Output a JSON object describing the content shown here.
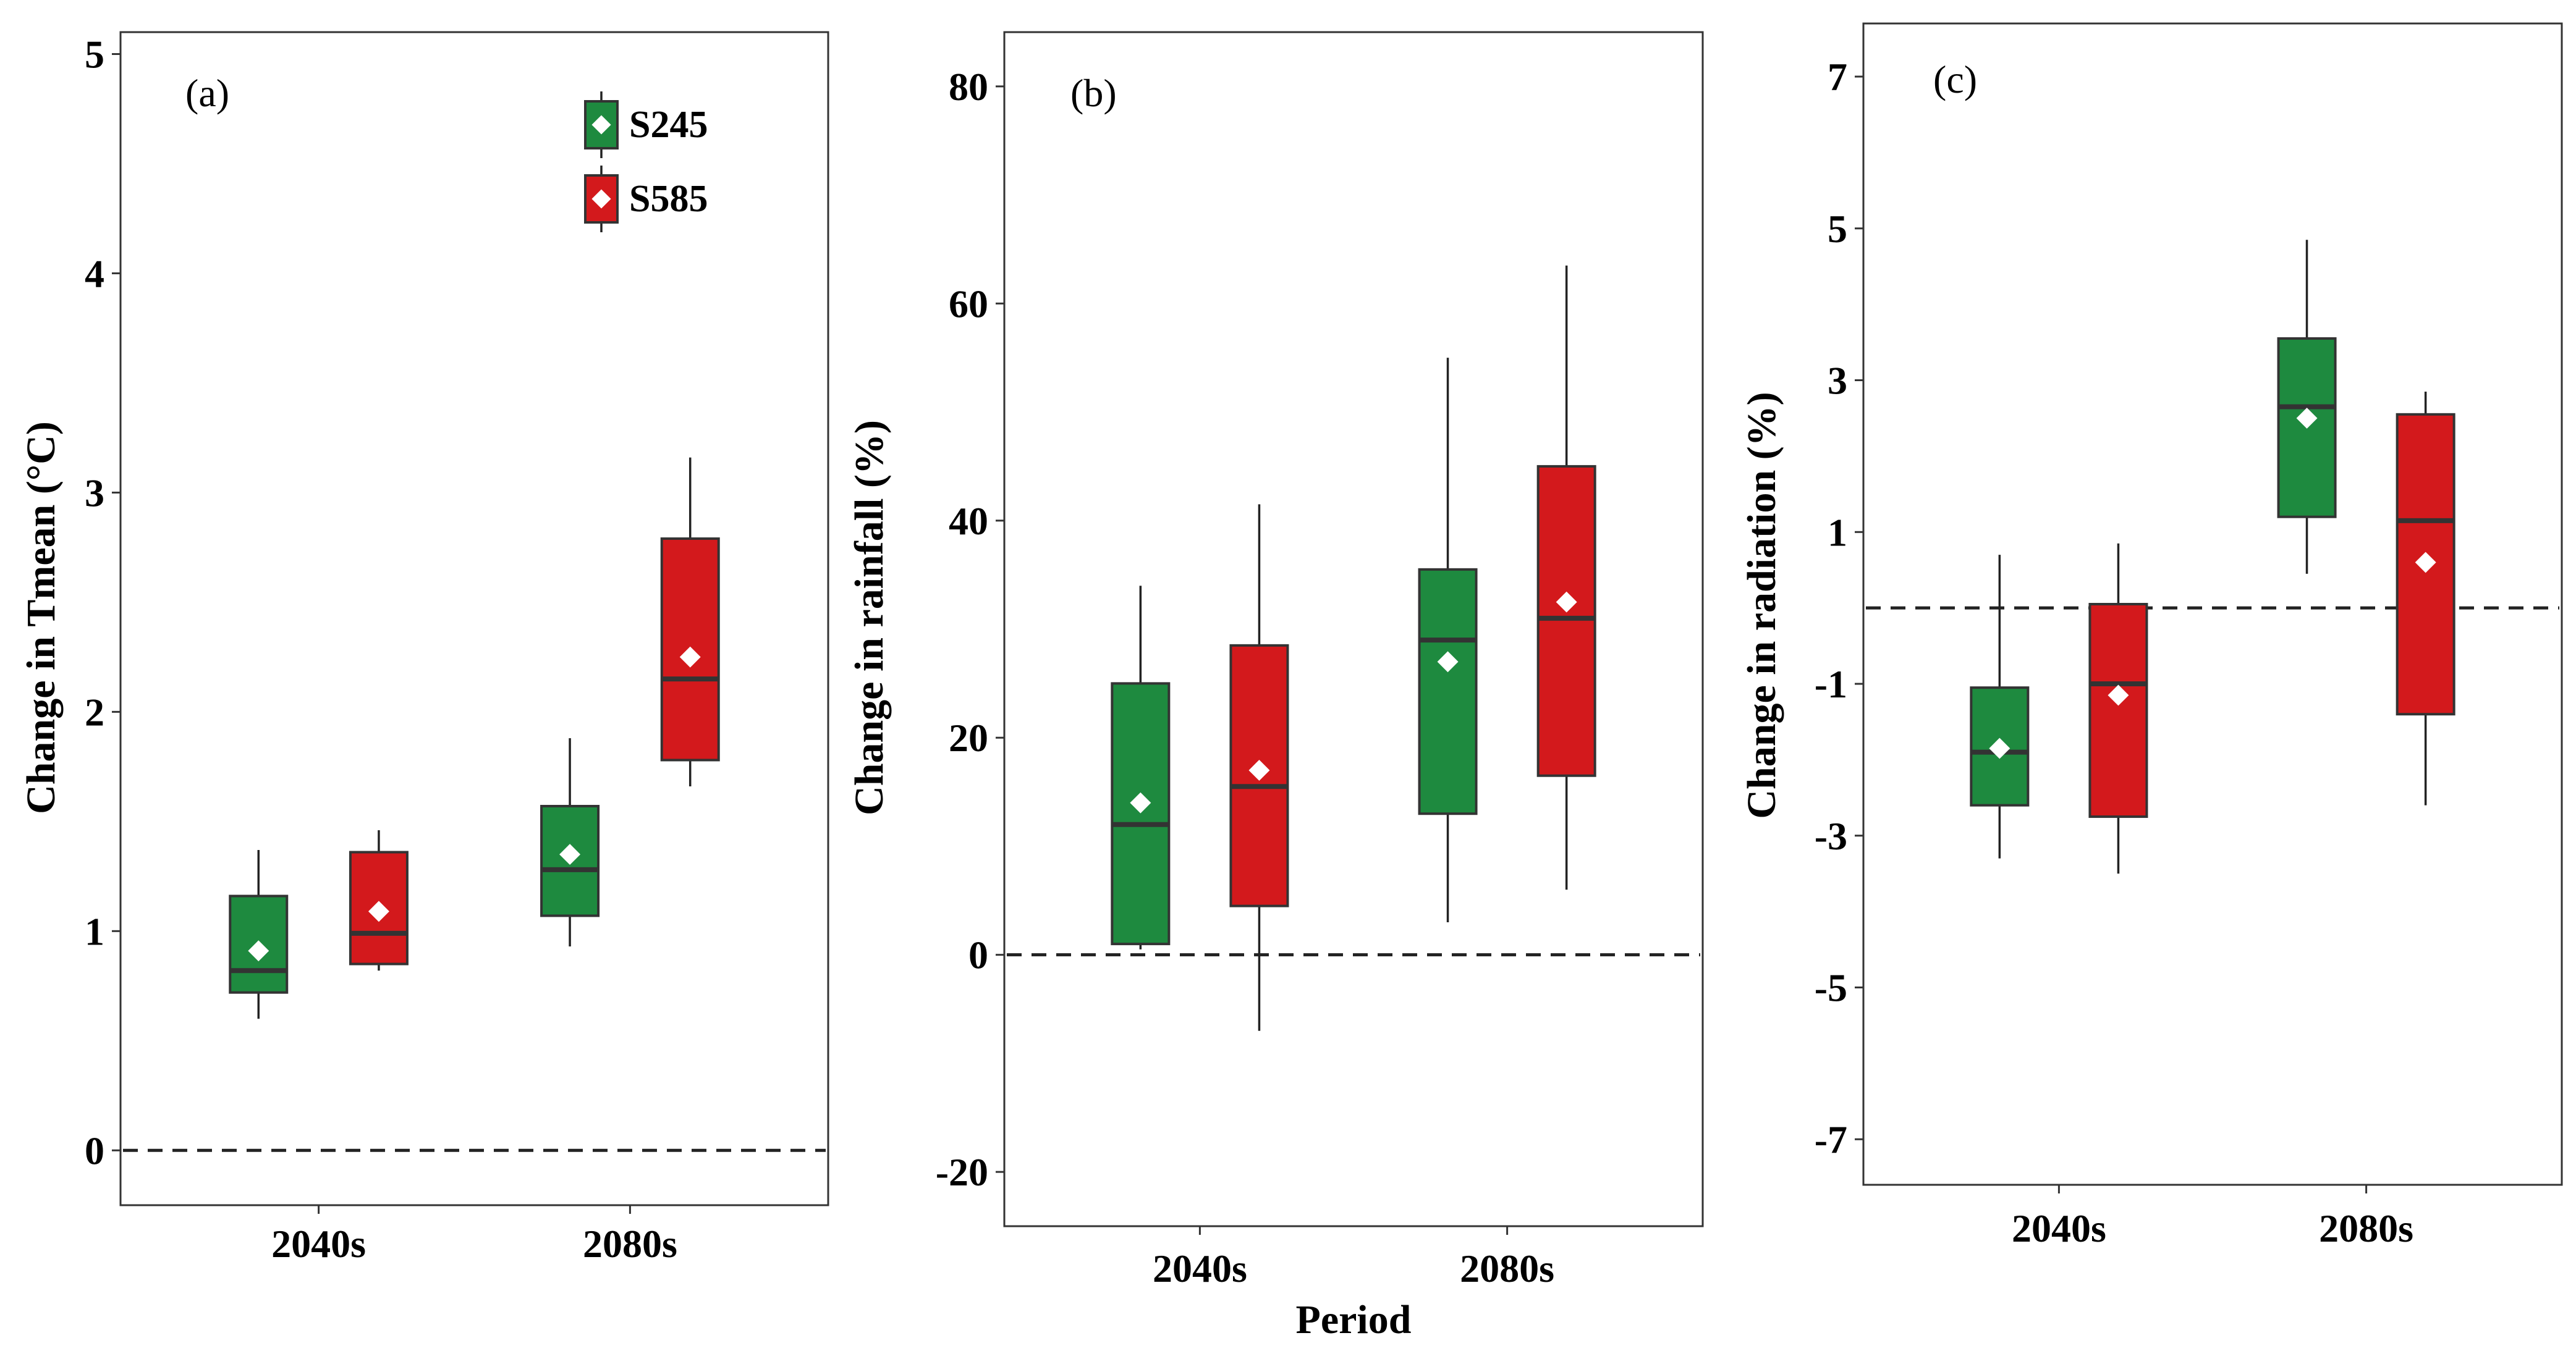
{
  "figure_label": "Period",
  "chart_data": [
    {
      "type": "box",
      "panel": "(a)",
      "ylabel": "Change in Tmean (°C)",
      "xlabel": "",
      "categories": [
        "2040s",
        "2080s"
      ],
      "ylim": [
        -0.25,
        5.1
      ],
      "yticks": [
        "0",
        "1",
        "2",
        "3",
        "4",
        "5"
      ],
      "reference_line": 0,
      "legend": {
        "position": "top-right",
        "items": [
          "S245",
          "S585"
        ]
      },
      "series": [
        {
          "name": "S245",
          "color": "#1e8a3f",
          "boxes": [
            {
              "min": 0.6,
              "q1": 0.72,
              "median": 0.82,
              "q3": 1.16,
              "max": 1.37,
              "mean": 0.91
            },
            {
              "min": 0.93,
              "q1": 1.07,
              "median": 1.28,
              "q3": 1.57,
              "max": 1.88,
              "mean": 1.35
            }
          ]
        },
        {
          "name": "S585",
          "color": "#d3191c",
          "boxes": [
            {
              "min": 0.82,
              "q1": 0.85,
              "median": 0.99,
              "q3": 1.36,
              "max": 1.46,
              "mean": 1.09
            },
            {
              "min": 1.66,
              "q1": 1.78,
              "median": 2.15,
              "q3": 2.79,
              "max": 3.16,
              "mean": 2.25
            }
          ]
        }
      ]
    },
    {
      "type": "box",
      "panel": "(b)",
      "ylabel": "Change in rainfall (%)",
      "xlabel": "Period",
      "categories": [
        "2040s",
        "2080s"
      ],
      "ylim": [
        -25,
        85
      ],
      "yticks": [
        "-20",
        "0",
        "20",
        "40",
        "60",
        "80"
      ],
      "reference_line": 0,
      "series": [
        {
          "name": "S245",
          "color": "#1e8a3f",
          "boxes": [
            {
              "min": 0.5,
              "q1": 1,
              "median": 12,
              "q3": 25,
              "max": 34,
              "mean": 14
            },
            {
              "min": 3,
              "q1": 13,
              "median": 29,
              "q3": 35.5,
              "max": 55,
              "mean": 27
            }
          ]
        },
        {
          "name": "S585",
          "color": "#d3191c",
          "boxes": [
            {
              "min": -7,
              "q1": 4.5,
              "median": 15.5,
              "q3": 28.5,
              "max": 41.5,
              "mean": 17
            },
            {
              "min": 6,
              "q1": 16.5,
              "median": 31,
              "q3": 45,
              "max": 63.5,
              "mean": 32.5
            }
          ]
        }
      ]
    },
    {
      "type": "box",
      "panel": "(c)",
      "ylabel": "Change in radiation (%)",
      "xlabel": "",
      "categories": [
        "2040s",
        "2080s"
      ],
      "ylim": [
        -7.6,
        7.7
      ],
      "yticks": [
        "-7",
        "-5",
        "-3",
        "-1",
        "1",
        "3",
        "5",
        "7"
      ],
      "reference_line": 0,
      "series": [
        {
          "name": "S245",
          "color": "#1e8a3f",
          "boxes": [
            {
              "min": -3.3,
              "q1": -2.6,
              "median": -1.9,
              "q3": -1.05,
              "max": 0.7,
              "mean": -1.85
            },
            {
              "min": 0.45,
              "q1": 1.2,
              "median": 2.65,
              "q3": 3.55,
              "max": 4.85,
              "mean": 2.5
            }
          ]
        },
        {
          "name": "S585",
          "color": "#d3191c",
          "boxes": [
            {
              "min": -3.5,
              "q1": -2.75,
              "median": -1,
              "q3": 0.05,
              "max": 0.85,
              "mean": -1.15
            },
            {
              "min": -2.6,
              "q1": -1.4,
              "median": 1.15,
              "q3": 2.55,
              "max": 2.85,
              "mean": 0.6
            }
          ]
        }
      ]
    }
  ]
}
